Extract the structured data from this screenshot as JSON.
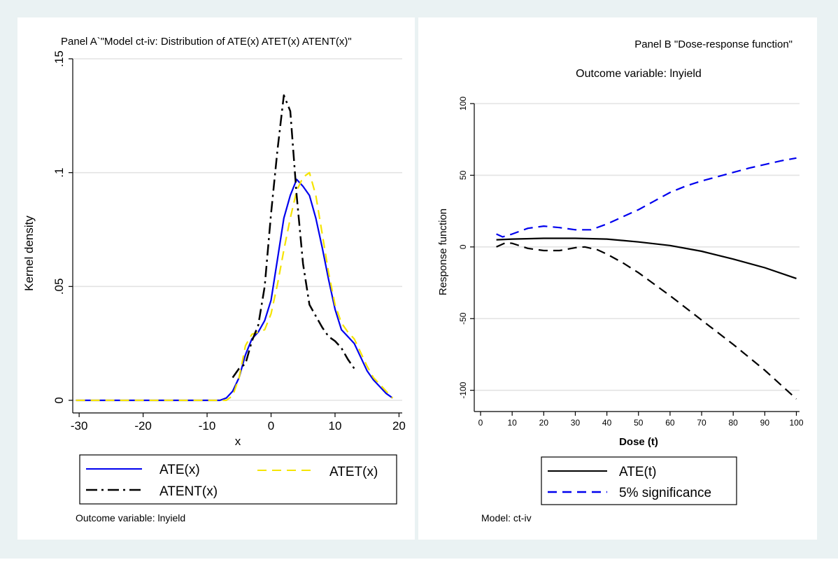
{
  "chart_data": [
    {
      "type": "line",
      "title": "Panel A`\"Model ct-iv: Distribution of ATE(x) ATET(x) ATENT(x)\"",
      "xlabel": "x",
      "ylabel": "Kernel density",
      "xlim": [
        -31,
        20.5
      ],
      "ylim": [
        0,
        0.15
      ],
      "xticks": [
        -30,
        -20,
        -10,
        0,
        10,
        20
      ],
      "xtick_labels": [
        "-30",
        "-20",
        "-10",
        "0",
        "10",
        "20"
      ],
      "yticks": [
        0,
        0.05,
        0.1,
        0.15
      ],
      "ytick_labels": [
        "0",
        ".05",
        ".1",
        ".15"
      ],
      "grid": true,
      "legend_position": "bottom",
      "note": "Outcome variable: lnyield",
      "series": [
        {
          "name": "ATE(x)",
          "color": "#0000ee",
          "dash": "solid",
          "x": [
            -30.5,
            -20,
            -10,
            -8,
            -7,
            -6,
            -5,
            -4,
            -3,
            -2,
            -1,
            0,
            1,
            2,
            3,
            4,
            5,
            6,
            7,
            8,
            9,
            10,
            11,
            12,
            13,
            14,
            15,
            16,
            17,
            18,
            19
          ],
          "y": [
            0,
            0,
            0,
            0,
            0.001,
            0.004,
            0.01,
            0.02,
            0.027,
            0.03,
            0.035,
            0.044,
            0.062,
            0.08,
            0.09,
            0.097,
            0.094,
            0.09,
            0.08,
            0.067,
            0.053,
            0.04,
            0.031,
            0.028,
            0.025,
            0.019,
            0.013,
            0.009,
            0.006,
            0.003,
            0.001
          ]
        },
        {
          "name": "ATET(x)",
          "color": "#f5e400",
          "dash": "dashed",
          "x": [
            -30.5,
            -20,
            -10,
            -7,
            -6,
            -5,
            -4,
            -3,
            -2,
            -1,
            0,
            1,
            2,
            3,
            4,
            5,
            6,
            7,
            8,
            9,
            10,
            11,
            12,
            13,
            14,
            15,
            16,
            17,
            18,
            19
          ],
          "y": [
            0,
            0,
            0,
            0,
            0.002,
            0.01,
            0.024,
            0.029,
            0.03,
            0.031,
            0.038,
            0.051,
            0.066,
            0.08,
            0.092,
            0.098,
            0.1,
            0.09,
            0.073,
            0.056,
            0.042,
            0.034,
            0.03,
            0.027,
            0.021,
            0.015,
            0.01,
            0.007,
            0.004,
            0.001
          ]
        },
        {
          "name": "ATENT(x)",
          "color": "#000000",
          "dash": "dashdot",
          "x": [
            -6,
            -5,
            -4,
            -3,
            -2,
            -1,
            0,
            1,
            2,
            3,
            4,
            5,
            6,
            7,
            8,
            9,
            10,
            11,
            12,
            13
          ],
          "y": [
            0.01,
            0.014,
            0.016,
            0.026,
            0.033,
            0.05,
            0.082,
            0.11,
            0.134,
            0.127,
            0.09,
            0.06,
            0.042,
            0.037,
            0.032,
            0.028,
            0.026,
            0.023,
            0.018,
            0.014
          ]
        }
      ]
    },
    {
      "type": "line",
      "title": "Panel B \"Dose-response function\"",
      "subtitle": "Outcome variable: lnyield",
      "xlabel": "Dose (t)",
      "ylabel": "Response function",
      "xlim": [
        -2,
        101
      ],
      "ylim": [
        -107,
        100
      ],
      "xticks": [
        0,
        10,
        20,
        30,
        40,
        50,
        60,
        70,
        80,
        90,
        100
      ],
      "xtick_labels": [
        "0",
        "10",
        "20",
        "30",
        "40",
        "50",
        "60",
        "70",
        "80",
        "90",
        "100"
      ],
      "yticks": [
        -100,
        -50,
        0,
        50,
        100
      ],
      "ytick_labels": [
        "-100",
        "-50",
        "0",
        "50",
        "100"
      ],
      "grid": true,
      "legend_position": "bottom",
      "note": "Model: ct-iv",
      "series": [
        {
          "name": "ATE(t)",
          "color": "#000000",
          "dash": "solid",
          "x": [
            5,
            10,
            20,
            30,
            40,
            50,
            60,
            70,
            80,
            90,
            100
          ],
          "y": [
            5,
            5.5,
            6,
            6,
            5.5,
            3.5,
            1,
            -3,
            -8.5,
            -14.5,
            -22
          ]
        },
        {
          "name": "5% significance",
          "color": "#0000ee",
          "dash": "dashed",
          "x": [
            5,
            7,
            10,
            15,
            20,
            25,
            30,
            35,
            40,
            45,
            50,
            55,
            60,
            65,
            70,
            75,
            80,
            85,
            90,
            95,
            100
          ],
          "y": [
            9,
            7,
            9,
            13,
            14.5,
            13.5,
            12,
            12,
            16,
            21,
            26,
            32,
            38,
            42.5,
            46,
            49,
            52,
            55,
            57.5,
            60,
            62
          ]
        },
        {
          "name": "5% significance lower",
          "color": "#000000",
          "dash": "dashed",
          "in_legend": false,
          "x": [
            5,
            8,
            10,
            15,
            20,
            25,
            30,
            33,
            37,
            40,
            45,
            50,
            60,
            70,
            80,
            90,
            100
          ],
          "y": [
            0,
            3,
            2.5,
            -1,
            -2.5,
            -2.5,
            -0.5,
            0,
            -2,
            -5,
            -11,
            -18,
            -34,
            -51,
            -68,
            -86,
            -106
          ]
        }
      ]
    }
  ]
}
